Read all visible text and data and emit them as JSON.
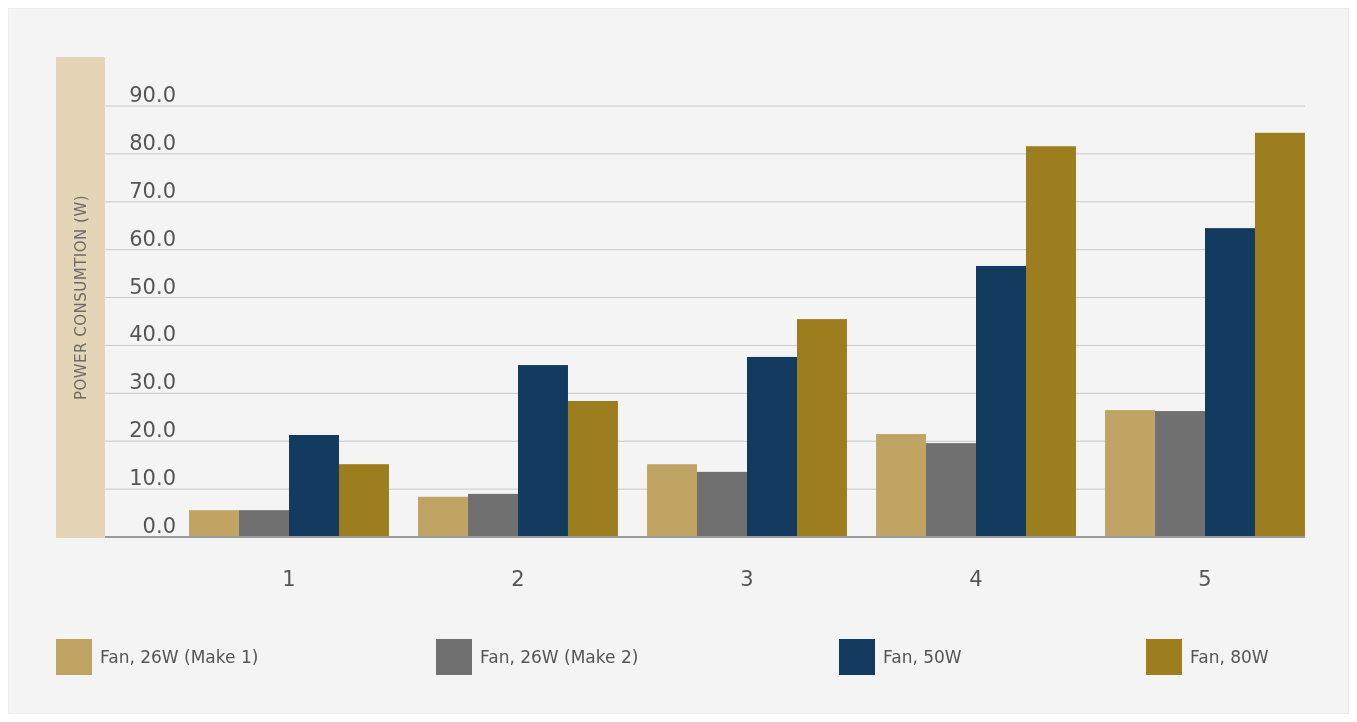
{
  "chart_data": {
    "type": "bar",
    "ylabel": "POWER CONSUMTION (W)",
    "categories": [
      "1",
      "2",
      "3",
      "4",
      "5"
    ],
    "series": [
      {
        "name": "Fan, 26W (Make 1)",
        "color": "#bfa463",
        "values": [
          5.6,
          8.4,
          15.2,
          21.5,
          26.5
        ]
      },
      {
        "name": "Fan, 26W (Make 2)",
        "color": "#6f706f",
        "values": [
          5.6,
          9.0,
          13.6,
          19.6,
          26.3
        ]
      },
      {
        "name": "Fan, 50W",
        "color": "#133b5f",
        "values": [
          21.3,
          35.9,
          37.6,
          56.6,
          64.5
        ]
      },
      {
        "name": "Fan, 80W",
        "color": "#9c7e1e",
        "values": [
          15.2,
          28.4,
          45.5,
          81.6,
          84.4
        ]
      }
    ],
    "ylim": [
      0,
      90
    ],
    "yticks": [
      {
        "value": 0,
        "label": "0.0"
      },
      {
        "value": 10,
        "label": "10.0"
      },
      {
        "value": 20,
        "label": "20.0"
      },
      {
        "value": 30,
        "label": "30.0"
      },
      {
        "value": 40,
        "label": "40.0"
      },
      {
        "value": 50,
        "label": "50.0"
      },
      {
        "value": 60,
        "label": "60.0"
      },
      {
        "value": 70,
        "label": "70.0"
      },
      {
        "value": 80,
        "label": "80.0"
      },
      {
        "value": 90,
        "label": "90.0"
      }
    ],
    "grid": "y",
    "legend": "bottom"
  }
}
